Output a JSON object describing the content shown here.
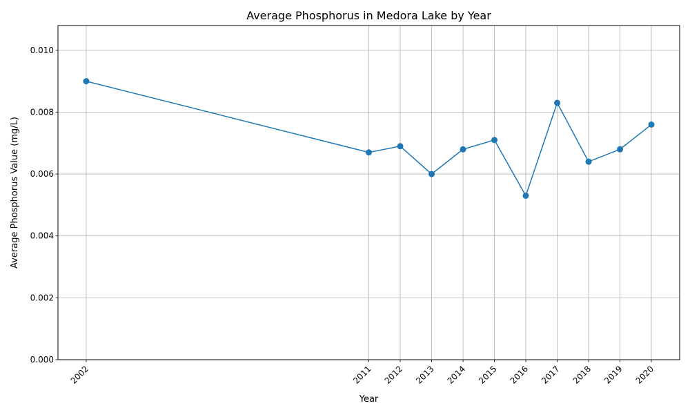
{
  "chart_data": {
    "type": "line",
    "title": "Average Phosphorus in Medora Lake by Year",
    "xlabel": "Year",
    "ylabel": "Average Phosphorus Value (mg/L)",
    "x": [
      2002,
      2011,
      2012,
      2013,
      2014,
      2015,
      2016,
      2017,
      2018,
      2019,
      2020
    ],
    "x_tick_labels": [
      "2002",
      "2011",
      "2012",
      "2013",
      "2014",
      "2015",
      "2016",
      "2017",
      "2018",
      "2019",
      "2020"
    ],
    "series": [
      {
        "values": [
          0.009,
          0.0067,
          0.0069,
          0.006,
          0.0068,
          0.0071,
          0.0053,
          0.0083,
          0.0064,
          0.0068,
          0.0076
        ],
        "color": "#1f77b4",
        "marker": "circle"
      }
    ],
    "xlim": [
      2001.1,
      2020.9
    ],
    "ylim": [
      0,
      0.0108
    ],
    "y_ticks": [
      0.0,
      0.002,
      0.004,
      0.006,
      0.008,
      0.01
    ],
    "y_tick_labels": [
      "0.000",
      "0.002",
      "0.004",
      "0.006",
      "0.008",
      "0.010"
    ],
    "grid": true,
    "legend": "none"
  }
}
